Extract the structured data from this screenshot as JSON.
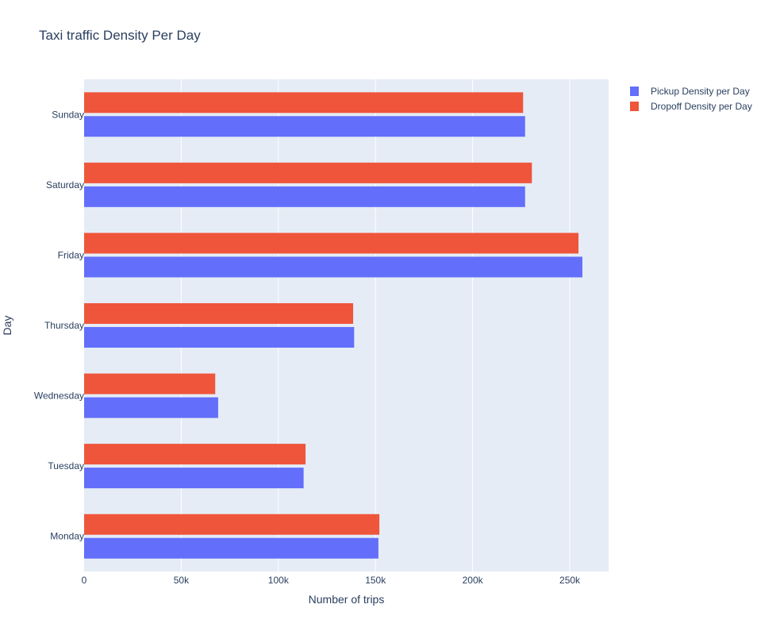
{
  "chart_data": {
    "type": "bar",
    "orientation": "horizontal",
    "title": "Taxi traffic Density Per Day",
    "xlabel": "Number of trips",
    "ylabel": "Day",
    "categories": [
      "Monday",
      "Tuesday",
      "Wednesday",
      "Thursday",
      "Friday",
      "Saturday",
      "Sunday"
    ],
    "series": [
      {
        "name": "Pickup Density per Day",
        "color": "#636efa",
        "values": [
          151500,
          113000,
          69000,
          139000,
          256500,
          227000,
          227000
        ]
      },
      {
        "name": "Dropoff Density per Day",
        "color": "#ef553b",
        "values": [
          152000,
          114000,
          67500,
          138500,
          254500,
          230500,
          226000
        ]
      }
    ],
    "xlim": [
      0,
      270000
    ],
    "xticks": [
      {
        "value": 0,
        "label": "0"
      },
      {
        "value": 50000,
        "label": "50k"
      },
      {
        "value": 100000,
        "label": "100k"
      },
      {
        "value": 150000,
        "label": "150k"
      },
      {
        "value": 200000,
        "label": "200k"
      },
      {
        "value": 250000,
        "label": "250k"
      }
    ],
    "grid": true,
    "legend_position": "top-right",
    "plot_background": "#e5ecf6"
  }
}
